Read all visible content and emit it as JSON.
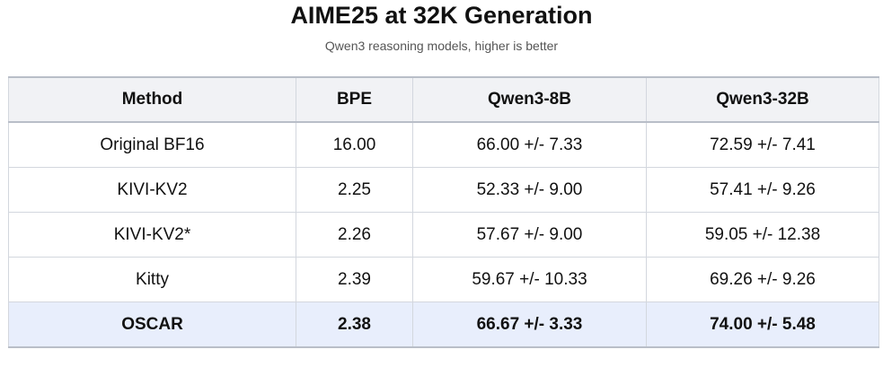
{
  "header": {
    "title": "AIME25 at 32K Generation",
    "subtitle": "Qwen3 reasoning models, higher is better"
  },
  "table": {
    "columns": [
      "Method",
      "BPE",
      "Qwen3-8B",
      "Qwen3-32B"
    ],
    "rows": [
      [
        "Original BF16",
        "16.00",
        "66.00 +/- 7.33",
        "72.59 +/- 7.41"
      ],
      [
        "KIVI-KV2",
        "2.25",
        "52.33 +/- 9.00",
        "57.41 +/- 9.26"
      ],
      [
        "KIVI-KV2*",
        "2.26",
        "57.67 +/- 9.00",
        "59.05 +/- 12.38"
      ],
      [
        "Kitty",
        "2.39",
        "59.67 +/- 10.33",
        "69.26 +/- 9.26"
      ],
      [
        "OSCAR",
        "2.38",
        "66.67 +/- 3.33",
        "74.00 +/- 5.48"
      ]
    ]
  }
}
